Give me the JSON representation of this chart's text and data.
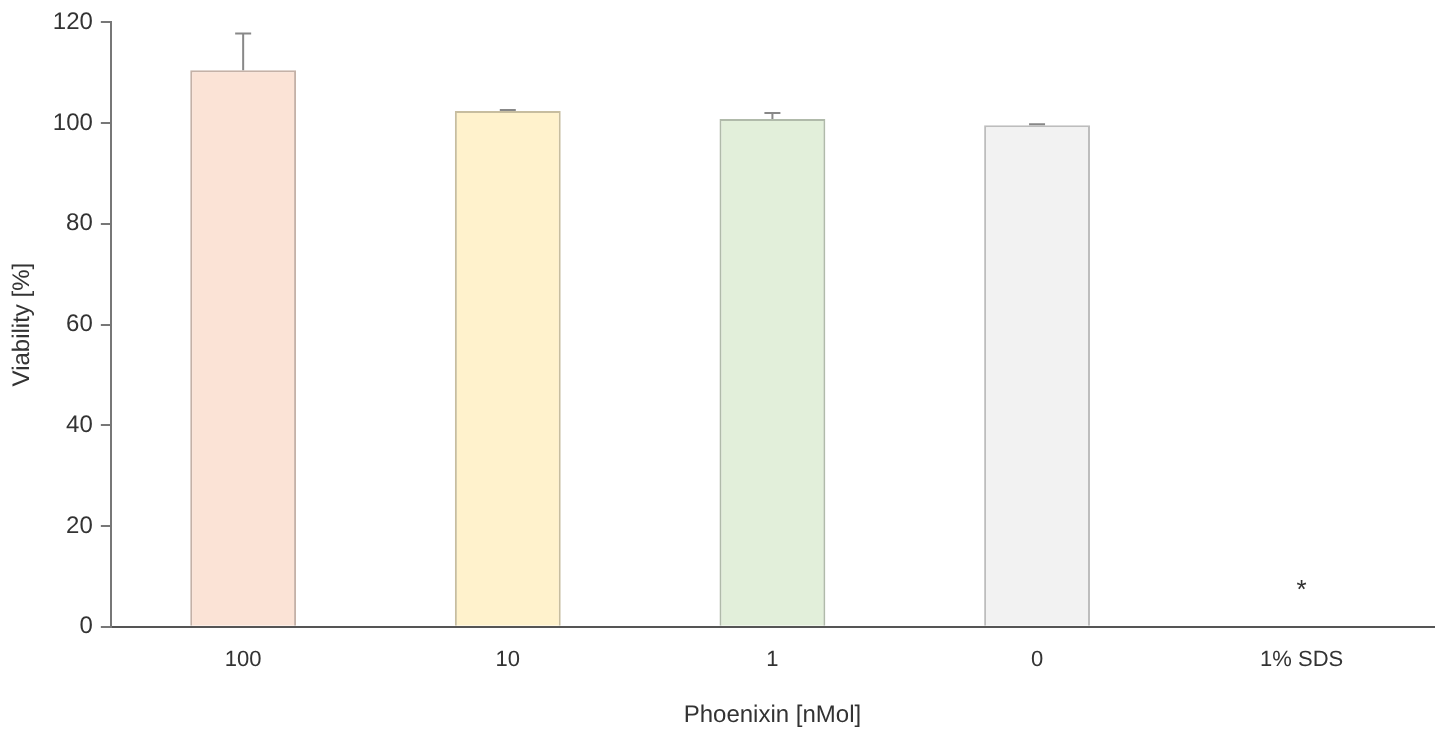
{
  "chart_data": {
    "type": "bar",
    "xlabel": "Phoenixin [nMol]",
    "ylabel": "Viability [%]",
    "categories": [
      "100",
      "10",
      "1",
      "0",
      "1% SDS"
    ],
    "values": [
      110.5,
      102.4,
      100.8,
      99.6,
      0
    ],
    "colors": [
      "#fbe3d6",
      "#fff2cc",
      "#e2efda",
      "#f2f2f2",
      "#f2f2f2"
    ],
    "errors": [
      [
        110.5,
        117.8
      ],
      [
        102.4,
        102.6
      ],
      [
        100.8,
        102.0
      ],
      [
        99.6,
        99.8
      ],
      null
    ],
    "ylim": [
      0,
      120
    ],
    "yticks": [
      0,
      20,
      40,
      60,
      80,
      100,
      120
    ],
    "grid": false,
    "legend": false,
    "annotations": [
      "*"
    ]
  }
}
